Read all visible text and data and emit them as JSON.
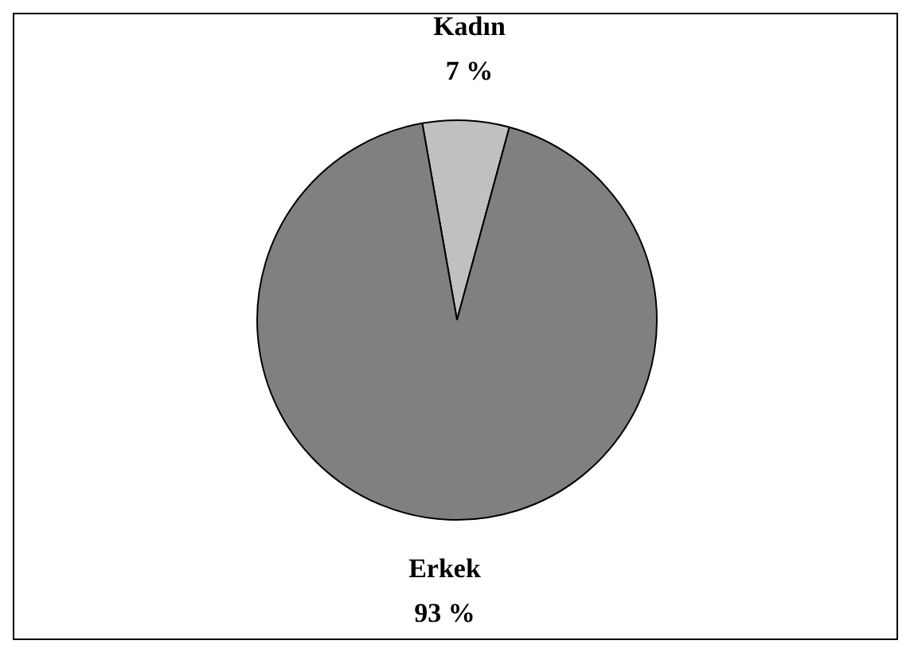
{
  "chart_data": {
    "type": "pie",
    "categories": [
      "Kadın",
      "Erkek"
    ],
    "values": [
      7,
      93
    ],
    "colors": [
      "#c0c0c0",
      "#808080"
    ],
    "value_labels": [
      "7 %",
      "93 %"
    ],
    "legend": false
  }
}
